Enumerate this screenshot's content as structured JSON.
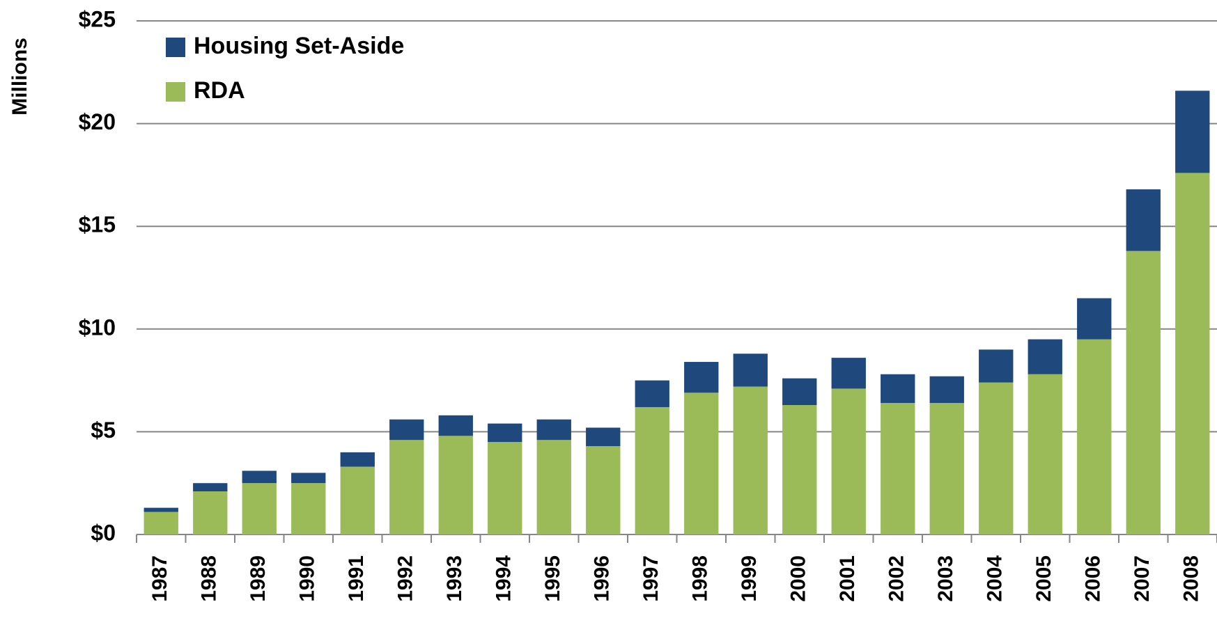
{
  "chart_data": {
    "type": "stacked_bar",
    "y_label": "Millions",
    "categories": [
      "1987",
      "1988",
      "1989",
      "1990",
      "1991",
      "1992",
      "1993",
      "1994",
      "1995",
      "1996",
      "1997",
      "1998",
      "1999",
      "2000",
      "2001",
      "2002",
      "2003",
      "2004",
      "2005",
      "2006",
      "2007",
      "2008"
    ],
    "series": [
      {
        "name": "RDA",
        "color": "#9bbb59",
        "values": [
          1.1,
          2.1,
          2.5,
          2.5,
          3.3,
          4.6,
          4.8,
          4.5,
          4.6,
          4.3,
          6.2,
          6.9,
          7.2,
          6.3,
          7.1,
          6.4,
          6.4,
          7.4,
          7.8,
          9.5,
          13.8,
          17.6
        ]
      },
      {
        "name": "Housing Set-Aside",
        "color": "#1f497d",
        "values": [
          0.2,
          0.4,
          0.6,
          0.5,
          0.7,
          1.0,
          1.0,
          0.9,
          1.0,
          0.9,
          1.3,
          1.5,
          1.6,
          1.3,
          1.5,
          1.4,
          1.3,
          1.6,
          1.7,
          2.0,
          3.0,
          4.0
        ]
      }
    ],
    "ylim": [
      0,
      25
    ],
    "yticks": [
      {
        "value": 0,
        "label": "$0"
      },
      {
        "value": 5,
        "label": "$5"
      },
      {
        "value": 10,
        "label": "$10"
      },
      {
        "value": 15,
        "label": "$15"
      },
      {
        "value": 20,
        "label": "$20"
      },
      {
        "value": 25,
        "label": "$25"
      }
    ],
    "grid": true,
    "legend": "top-left"
  }
}
